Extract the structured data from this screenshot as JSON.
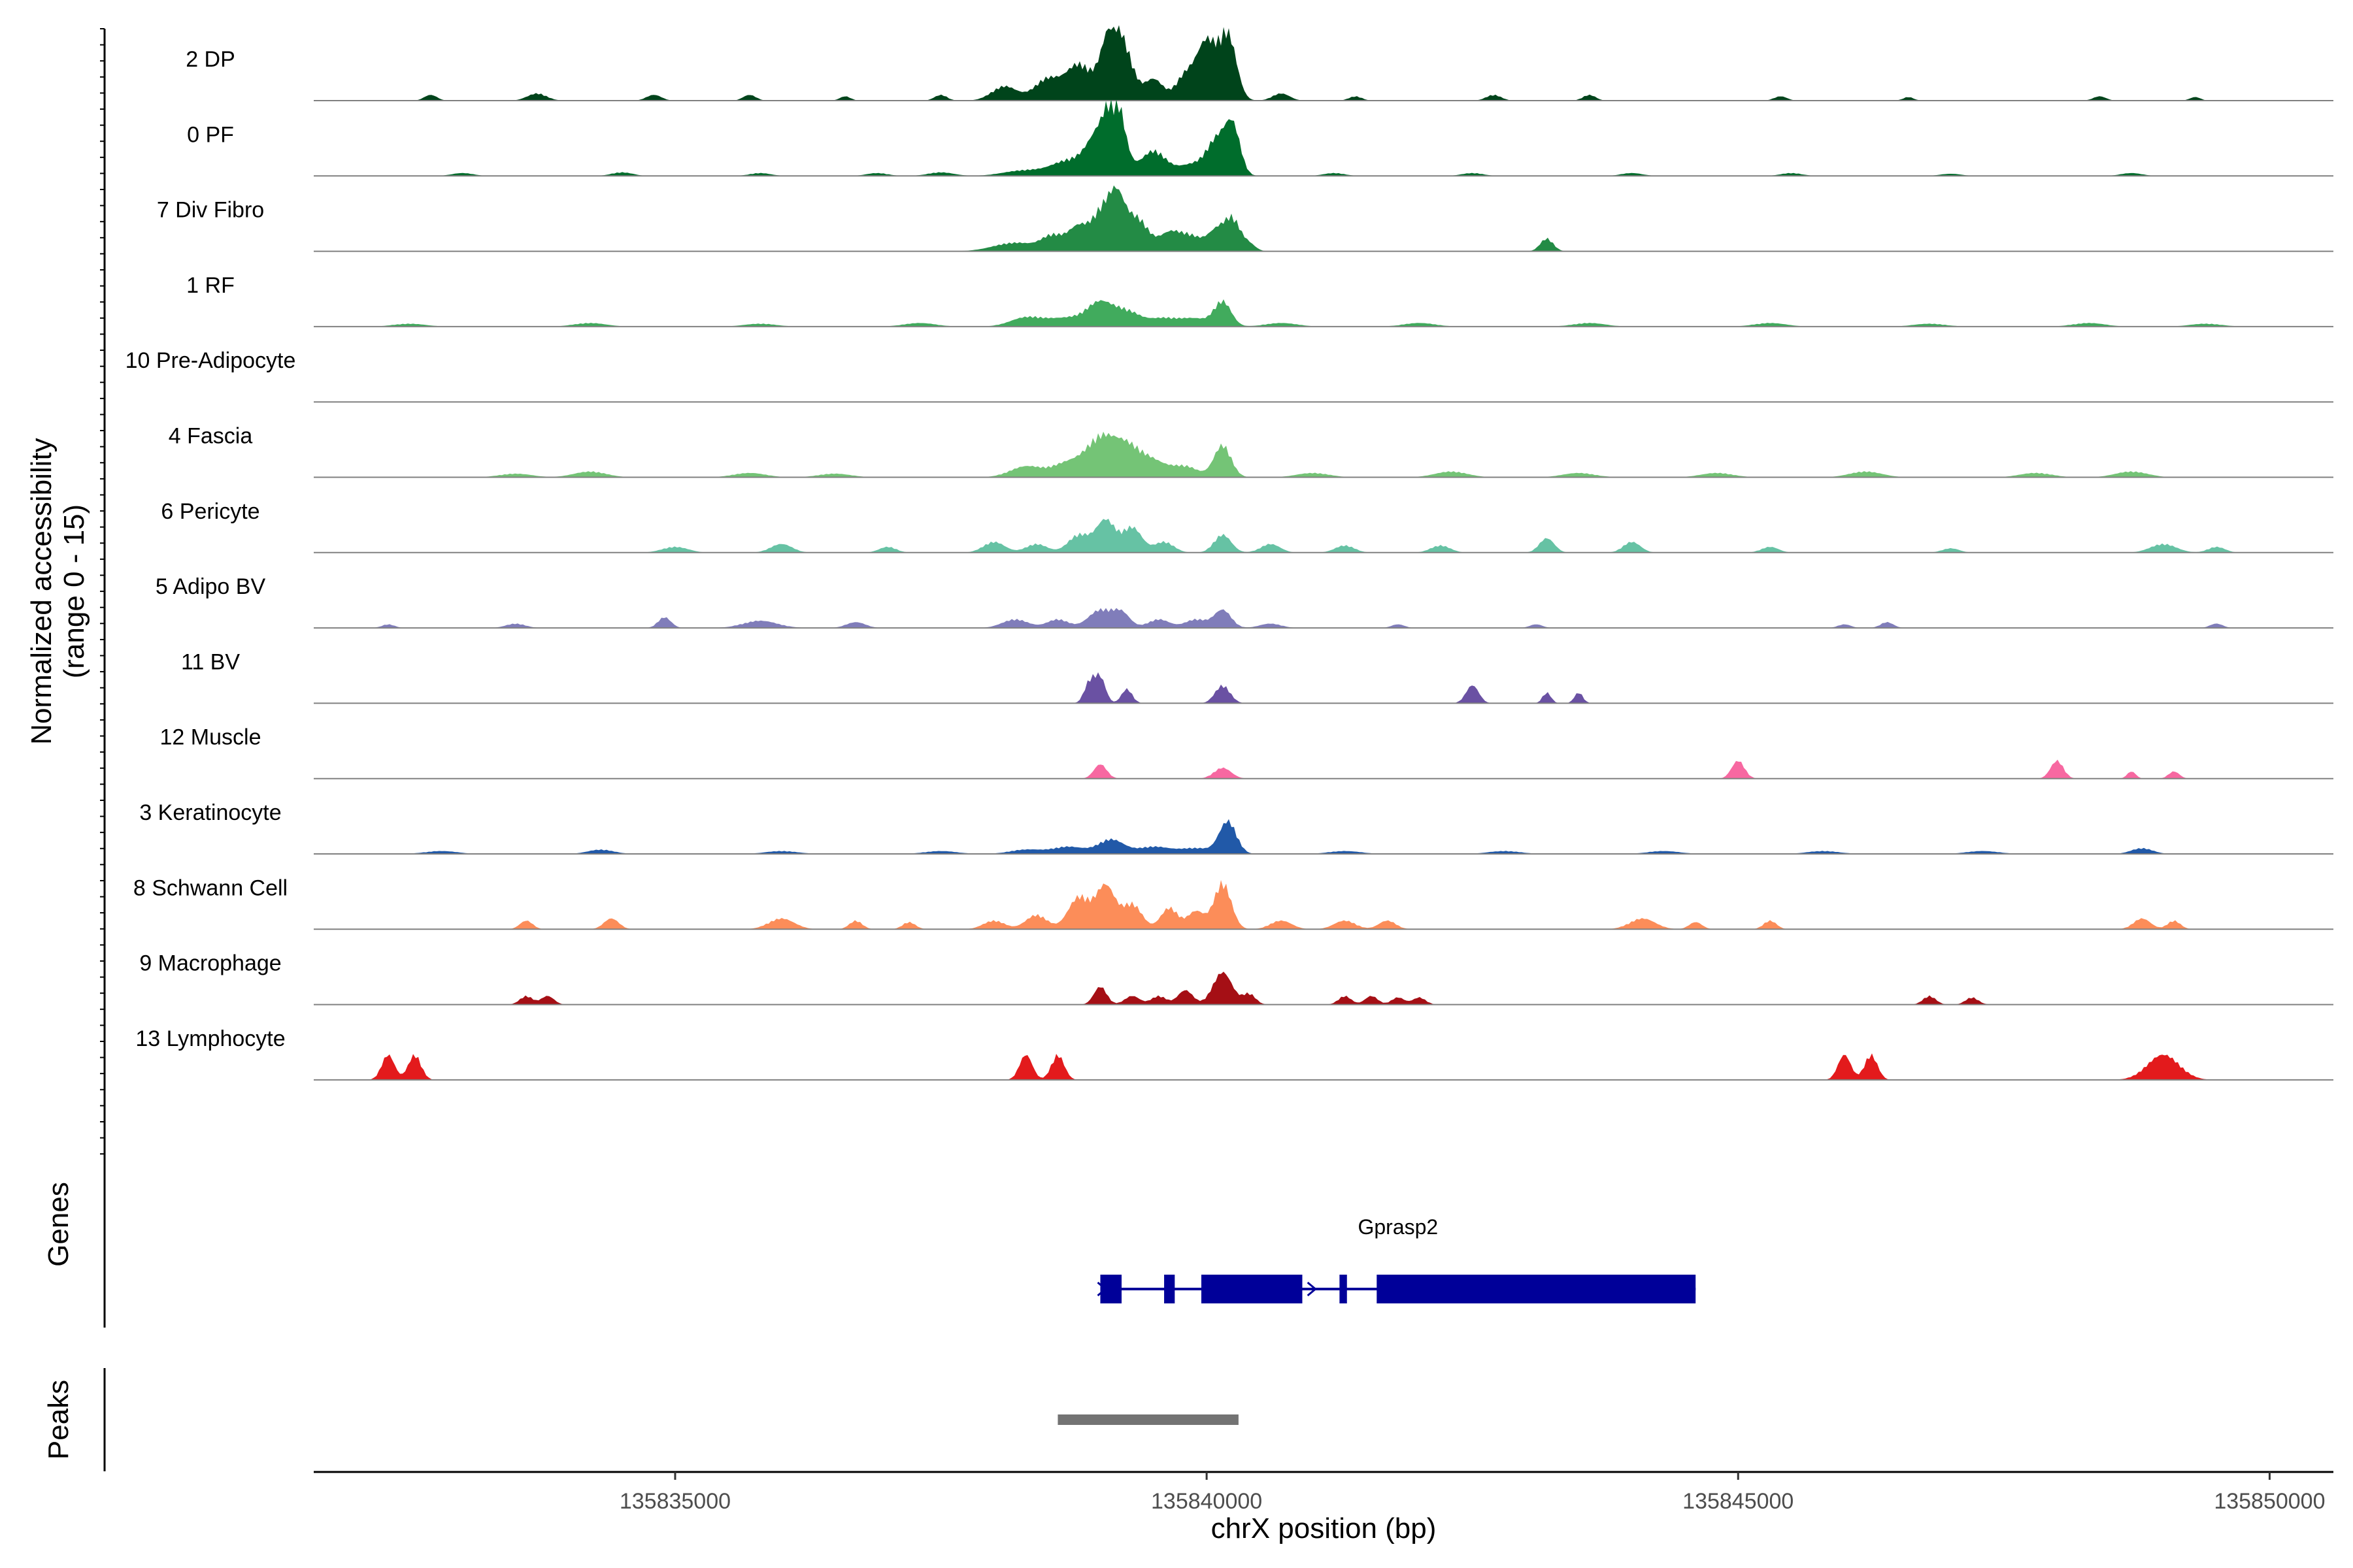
{
  "chart_data": {
    "type": "area",
    "title": "",
    "ylabel": [
      "Normalized accessibility",
      "(range 0 - 15)"
    ],
    "xlabel": "chrX position (bp)",
    "xlim": [
      135831600,
      135850600
    ],
    "ylim": [
      0,
      15
    ],
    "x_ticks": [
      {
        "value": 135835000,
        "label": "135835000"
      },
      {
        "value": 135840000,
        "label": "135840000"
      },
      {
        "value": 135845000,
        "label": "135845000"
      },
      {
        "value": 135850000,
        "label": "135850000"
      }
    ],
    "tracks": [
      {
        "name": "2 DP",
        "color": "#00441b",
        "peaks": [
          [
            135832700,
            0.08,
            60
          ],
          [
            135833700,
            0.1,
            90
          ],
          [
            135834800,
            0.08,
            70
          ],
          [
            135835700,
            0.08,
            60
          ],
          [
            135836600,
            0.06,
            50
          ],
          [
            135837500,
            0.08,
            60
          ],
          [
            135838100,
            0.2,
            120
          ],
          [
            135838500,
            0.3,
            120
          ],
          [
            135838800,
            0.5,
            120
          ],
          [
            135839100,
            1.0,
            90
          ],
          [
            135839250,
            0.5,
            80
          ],
          [
            135839500,
            0.3,
            90
          ],
          [
            135839800,
            0.35,
            90
          ],
          [
            135840000,
            0.8,
            90
          ],
          [
            135840200,
            0.9,
            80
          ],
          [
            135840700,
            0.1,
            80
          ],
          [
            135841400,
            0.06,
            60
          ],
          [
            135842700,
            0.08,
            70
          ],
          [
            135843600,
            0.08,
            60
          ],
          [
            135845400,
            0.06,
            60
          ],
          [
            135846600,
            0.05,
            50
          ],
          [
            135848400,
            0.06,
            60
          ],
          [
            135849300,
            0.05,
            50
          ]
        ]
      },
      {
        "name": "0 PF",
        "color": "#006d2c",
        "peaks": [
          [
            135833000,
            0.04,
            100
          ],
          [
            135834500,
            0.05,
            100
          ],
          [
            135835800,
            0.04,
            100
          ],
          [
            135836900,
            0.04,
            100
          ],
          [
            135837500,
            0.05,
            120
          ],
          [
            135838300,
            0.08,
            200
          ],
          [
            135838700,
            0.2,
            150
          ],
          [
            135839000,
            0.6,
            120
          ],
          [
            135839150,
            0.9,
            80
          ],
          [
            135839500,
            0.35,
            120
          ],
          [
            135839850,
            0.15,
            120
          ],
          [
            135840100,
            0.5,
            100
          ],
          [
            135840250,
            0.6,
            70
          ],
          [
            135841200,
            0.04,
            100
          ],
          [
            135842500,
            0.04,
            100
          ],
          [
            135844000,
            0.04,
            100
          ],
          [
            135845500,
            0.04,
            100
          ],
          [
            135847000,
            0.03,
            100
          ],
          [
            135848700,
            0.04,
            100
          ]
        ]
      },
      {
        "name": "7 Div Fibro",
        "color": "#238b45",
        "peaks": [
          [
            135838200,
            0.12,
            200
          ],
          [
            135838550,
            0.2,
            100
          ],
          [
            135838800,
            0.35,
            100
          ],
          [
            135839000,
            0.45,
            80
          ],
          [
            135839150,
            0.75,
            80
          ],
          [
            135839350,
            0.45,
            100
          ],
          [
            135839650,
            0.25,
            100
          ],
          [
            135839850,
            0.2,
            100
          ],
          [
            135840100,
            0.3,
            90
          ],
          [
            135840250,
            0.4,
            70
          ],
          [
            135840400,
            0.1,
            60
          ],
          [
            135843200,
            0.18,
            60
          ]
        ]
      },
      {
        "name": "1 RF",
        "color": "#41ab5d",
        "peaks": [
          [
            135832500,
            0.04,
            150
          ],
          [
            135834200,
            0.05,
            150
          ],
          [
            135835800,
            0.04,
            150
          ],
          [
            135837300,
            0.05,
            150
          ],
          [
            135838300,
            0.12,
            150
          ],
          [
            135838700,
            0.12,
            200
          ],
          [
            135839000,
            0.3,
            120
          ],
          [
            135839250,
            0.2,
            120
          ],
          [
            135839600,
            0.12,
            150
          ],
          [
            135839900,
            0.1,
            120
          ],
          [
            135840150,
            0.35,
            80
          ],
          [
            135840700,
            0.05,
            150
          ],
          [
            135842000,
            0.05,
            150
          ],
          [
            135843600,
            0.05,
            150
          ],
          [
            135845300,
            0.05,
            150
          ],
          [
            135846800,
            0.04,
            150
          ],
          [
            135848300,
            0.05,
            150
          ],
          [
            135849400,
            0.04,
            150
          ]
        ]
      },
      {
        "name": "10 Pre-Adipocyte",
        "color": "#74c476",
        "peaks": []
      },
      {
        "name": "4 Fascia",
        "color": "#74c476",
        "peaks": [
          [
            135833500,
            0.05,
            150
          ],
          [
            135834200,
            0.08,
            150
          ],
          [
            135835700,
            0.06,
            150
          ],
          [
            135836500,
            0.05,
            150
          ],
          [
            135838300,
            0.15,
            150
          ],
          [
            135838700,
            0.2,
            150
          ],
          [
            135839000,
            0.5,
            130
          ],
          [
            135839250,
            0.4,
            130
          ],
          [
            135839500,
            0.2,
            130
          ],
          [
            135839800,
            0.15,
            120
          ],
          [
            135840150,
            0.45,
            80
          ],
          [
            135841000,
            0.06,
            150
          ],
          [
            135842300,
            0.08,
            150
          ],
          [
            135843500,
            0.06,
            150
          ],
          [
            135844800,
            0.06,
            150
          ],
          [
            135846200,
            0.08,
            150
          ],
          [
            135847800,
            0.06,
            150
          ],
          [
            135848700,
            0.08,
            150
          ]
        ]
      },
      {
        "name": "6 Pericyte",
        "color": "#66c2a4",
        "peaks": [
          [
            135835000,
            0.08,
            120
          ],
          [
            135836000,
            0.12,
            100
          ],
          [
            135837000,
            0.08,
            80
          ],
          [
            135838000,
            0.15,
            100
          ],
          [
            135838400,
            0.12,
            100
          ],
          [
            135838800,
            0.25,
            100
          ],
          [
            135839050,
            0.45,
            90
          ],
          [
            135839300,
            0.35,
            90
          ],
          [
            135839600,
            0.15,
            90
          ],
          [
            135840150,
            0.25,
            80
          ],
          [
            135840600,
            0.12,
            90
          ],
          [
            135841300,
            0.1,
            90
          ],
          [
            135842200,
            0.1,
            90
          ],
          [
            135843200,
            0.2,
            70
          ],
          [
            135844000,
            0.15,
            80
          ],
          [
            135845300,
            0.08,
            80
          ],
          [
            135847000,
            0.06,
            80
          ],
          [
            135849000,
            0.12,
            120
          ],
          [
            135849500,
            0.08,
            80
          ]
        ]
      },
      {
        "name": "5 Adipo BV",
        "color": "#807dba",
        "peaks": [
          [
            135832300,
            0.05,
            60
          ],
          [
            135833500,
            0.06,
            90
          ],
          [
            135834900,
            0.15,
            60
          ],
          [
            135835800,
            0.1,
            160
          ],
          [
            135836700,
            0.08,
            90
          ],
          [
            135838200,
            0.12,
            120
          ],
          [
            135838600,
            0.12,
            100
          ],
          [
            135839000,
            0.25,
            110
          ],
          [
            135839200,
            0.2,
            80
          ],
          [
            135839550,
            0.12,
            100
          ],
          [
            135839900,
            0.12,
            100
          ],
          [
            135840150,
            0.25,
            80
          ],
          [
            135840600,
            0.06,
            100
          ],
          [
            135841800,
            0.05,
            60
          ],
          [
            135843100,
            0.05,
            60
          ],
          [
            135846000,
            0.05,
            60
          ],
          [
            135846400,
            0.08,
            60
          ],
          [
            135849500,
            0.06,
            60
          ]
        ]
      },
      {
        "name": "11 BV",
        "color": "#6a51a3",
        "peaks": [
          [
            135838900,
            0.3,
            50
          ],
          [
            135839000,
            0.35,
            50
          ],
          [
            135839250,
            0.2,
            50
          ],
          [
            135840150,
            0.25,
            70
          ],
          [
            135842500,
            0.25,
            60
          ],
          [
            135843200,
            0.15,
            40
          ],
          [
            135843500,
            0.15,
            40
          ]
        ]
      },
      {
        "name": "12 Muscle",
        "color": "#f768a1",
        "peaks": [
          [
            135839000,
            0.2,
            60
          ],
          [
            135840150,
            0.15,
            80
          ],
          [
            135845000,
            0.25,
            60
          ],
          [
            135848000,
            0.25,
            60
          ],
          [
            135848700,
            0.1,
            40
          ],
          [
            135849100,
            0.1,
            50
          ]
        ]
      },
      {
        "name": "3 Keratinocyte",
        "color": "#2159a8",
        "peaks": [
          [
            135832800,
            0.04,
            150
          ],
          [
            135834300,
            0.06,
            120
          ],
          [
            135836000,
            0.04,
            150
          ],
          [
            135837500,
            0.04,
            150
          ],
          [
            135838300,
            0.06,
            150
          ],
          [
            135838700,
            0.1,
            150
          ],
          [
            135839100,
            0.2,
            120
          ],
          [
            135839500,
            0.1,
            150
          ],
          [
            135839900,
            0.08,
            150
          ],
          [
            135840200,
            0.45,
            80
          ],
          [
            135841300,
            0.04,
            150
          ],
          [
            135842800,
            0.04,
            150
          ],
          [
            135844300,
            0.04,
            150
          ],
          [
            135845800,
            0.04,
            150
          ],
          [
            135847300,
            0.04,
            150
          ],
          [
            135848800,
            0.08,
            100
          ]
        ]
      },
      {
        "name": "8 Schwann Cell",
        "color": "#fc8d59",
        "peaks": [
          [
            135833600,
            0.12,
            60
          ],
          [
            135834400,
            0.15,
            70
          ],
          [
            135836000,
            0.15,
            120
          ],
          [
            135836700,
            0.12,
            60
          ],
          [
            135837200,
            0.1,
            60
          ],
          [
            135838000,
            0.12,
            100
          ],
          [
            135838400,
            0.2,
            100
          ],
          [
            135838800,
            0.45,
            100
          ],
          [
            135839050,
            0.6,
            90
          ],
          [
            135839300,
            0.35,
            90
          ],
          [
            135839650,
            0.3,
            80
          ],
          [
            135839900,
            0.25,
            80
          ],
          [
            135840150,
            0.65,
            80
          ],
          [
            135840700,
            0.12,
            100
          ],
          [
            135841300,
            0.12,
            100
          ],
          [
            135841700,
            0.12,
            80
          ],
          [
            135844100,
            0.15,
            120
          ],
          [
            135844600,
            0.1,
            60
          ],
          [
            135845300,
            0.12,
            60
          ],
          [
            135848800,
            0.15,
            80
          ],
          [
            135849100,
            0.12,
            60
          ]
        ]
      },
      {
        "name": "9 Macrophage",
        "color": "#a50f15",
        "peaks": [
          [
            135833600,
            0.12,
            60
          ],
          [
            135833800,
            0.12,
            60
          ],
          [
            135839000,
            0.25,
            60
          ],
          [
            135839300,
            0.12,
            70
          ],
          [
            135839550,
            0.12,
            70
          ],
          [
            135839800,
            0.2,
            70
          ],
          [
            135840150,
            0.45,
            90
          ],
          [
            135840400,
            0.15,
            60
          ],
          [
            135841300,
            0.12,
            60
          ],
          [
            135841550,
            0.12,
            60
          ],
          [
            135841800,
            0.1,
            60
          ],
          [
            135842000,
            0.1,
            60
          ],
          [
            135846800,
            0.12,
            60
          ],
          [
            135847200,
            0.1,
            60
          ]
        ]
      },
      {
        "name": "13 Lymphocyte",
        "color": "#e31a1c",
        "peaks": [
          [
            135832300,
            0.35,
            60
          ],
          [
            135832550,
            0.35,
            60
          ],
          [
            135838300,
            0.35,
            60
          ],
          [
            135838600,
            0.35,
            60
          ],
          [
            135846000,
            0.35,
            60
          ],
          [
            135846250,
            0.35,
            60
          ],
          [
            135849000,
            0.35,
            150
          ]
        ]
      }
    ],
    "genes_track_label": "Genes",
    "gene": {
      "name": "Gprasp2",
      "color": "#000099",
      "start": 135839000,
      "end": 135844600,
      "exons": [
        [
          135839000,
          135839200
        ],
        [
          135839600,
          135839700
        ],
        [
          135839950,
          135840900
        ],
        [
          135841250,
          135841320
        ],
        [
          135841600,
          135844600
        ]
      ]
    },
    "peaks_track_label": "Peaks",
    "peak_regions": [
      {
        "start": 135838600,
        "end": 135840300,
        "color": "#737373"
      }
    ]
  }
}
